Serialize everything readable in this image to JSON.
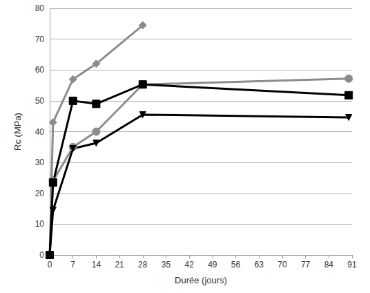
{
  "chart_data": {
    "type": "line",
    "x_label": "Durée (jours)",
    "y_label": "Rc (MPa)",
    "x": [
      0,
      1,
      7,
      14,
      28,
      90
    ],
    "series": [
      {
        "color": "#8c8c8c",
        "marker": "diamond",
        "values": [
          0,
          43,
          57,
          62,
          74.5,
          null
        ]
      },
      {
        "color": "#8c8c8c",
        "marker": "circle",
        "values": [
          0,
          24,
          35,
          40,
          55.3,
          57.2
        ]
      },
      {
        "color": "#000000",
        "marker": "square",
        "values": [
          0,
          23.5,
          50,
          49,
          55.3,
          51.8
        ]
      },
      {
        "color": "#000000",
        "marker": "triangle_down",
        "values": [
          0,
          14.5,
          34.5,
          36.3,
          45.5,
          44.6
        ]
      }
    ],
    "xlim": [
      0,
      91
    ],
    "xticks": [
      0,
      7,
      14,
      21,
      28,
      35,
      42,
      49,
      56,
      63,
      70,
      77,
      84,
      91
    ],
    "ylim": [
      0,
      80
    ],
    "yticks": [
      0,
      10,
      20,
      30,
      40,
      50,
      60,
      70,
      80
    ],
    "grid": true
  }
}
